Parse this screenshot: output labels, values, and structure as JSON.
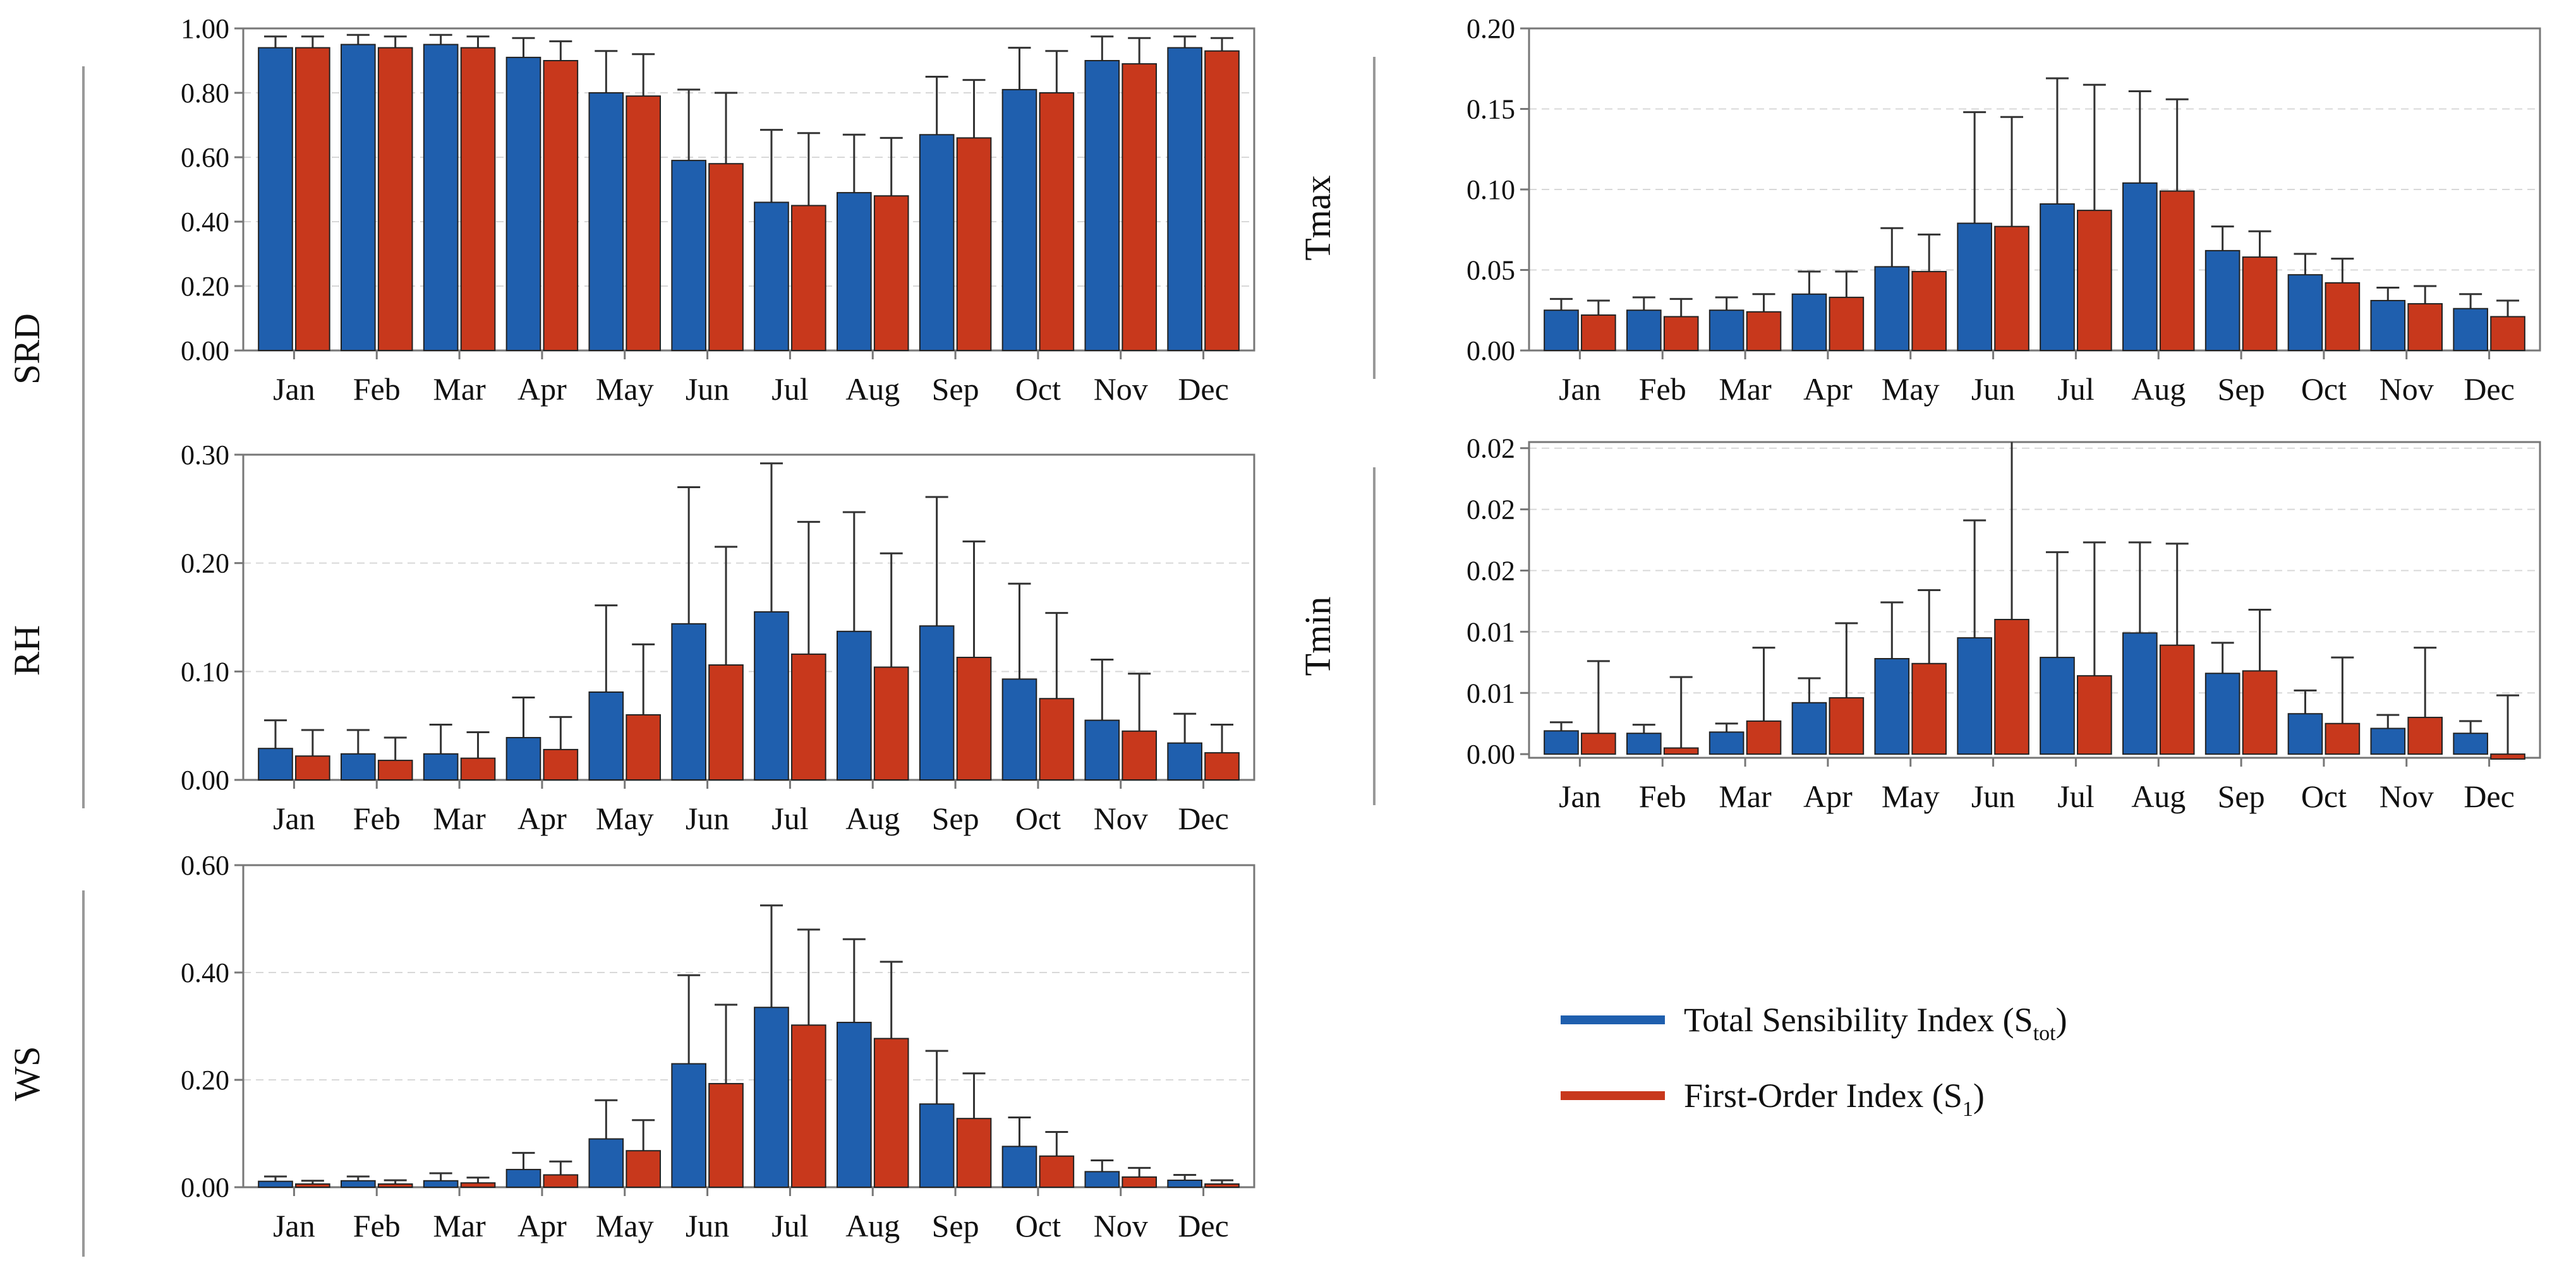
{
  "chart_data": [
    {
      "type": "bar",
      "id": "srd",
      "ylabel": "SRD",
      "categories": [
        "Jan",
        "Feb",
        "Mar",
        "Apr",
        "May",
        "Jun",
        "Jul",
        "Aug",
        "Sep",
        "Oct",
        "Nov",
        "Dec"
      ],
      "ylim": [
        0,
        1.0
      ],
      "yticks": [
        0.0,
        0.2,
        0.4,
        0.6,
        0.8,
        1.0
      ],
      "ytick_labels": [
        "0.00",
        "0.20",
        "0.40",
        "0.60",
        "0.80",
        "1.00"
      ],
      "series": [
        {
          "name": "Total Sensibility Index (Stot)",
          "values": [
            0.94,
            0.95,
            0.95,
            0.91,
            0.8,
            0.59,
            0.46,
            0.49,
            0.67,
            0.81,
            0.9,
            0.94
          ],
          "err": [
            0.975,
            0.98,
            0.98,
            0.97,
            0.93,
            0.81,
            0.685,
            0.67,
            0.85,
            0.94,
            0.975,
            0.975
          ]
        },
        {
          "name": "First-Order Index (S1)",
          "values": [
            0.94,
            0.94,
            0.94,
            0.9,
            0.79,
            0.58,
            0.45,
            0.48,
            0.66,
            0.8,
            0.89,
            0.93
          ],
          "err": [
            0.975,
            0.975,
            0.975,
            0.96,
            0.92,
            0.8,
            0.675,
            0.66,
            0.84,
            0.93,
            0.97,
            0.97
          ]
        }
      ]
    },
    {
      "type": "bar",
      "id": "tmax",
      "ylabel": "Tmax",
      "categories": [
        "Jan",
        "Feb",
        "Mar",
        "Apr",
        "May",
        "Jun",
        "Jul",
        "Aug",
        "Sep",
        "Oct",
        "Nov",
        "Dec"
      ],
      "ylim": [
        0,
        0.2
      ],
      "yticks": [
        0.0,
        0.05,
        0.1,
        0.15,
        0.2
      ],
      "ytick_labels": [
        "0.00",
        "0.05",
        "0.10",
        "0.15",
        "0.20"
      ],
      "series": [
        {
          "name": "Total Sensibility Index (Stot)",
          "values": [
            0.025,
            0.025,
            0.025,
            0.035,
            0.052,
            0.079,
            0.091,
            0.104,
            0.062,
            0.047,
            0.031,
            0.026
          ],
          "err": [
            0.032,
            0.033,
            0.033,
            0.049,
            0.076,
            0.148,
            0.169,
            0.161,
            0.077,
            0.06,
            0.039,
            0.035
          ]
        },
        {
          "name": "First-Order Index (S1)",
          "values": [
            0.022,
            0.021,
            0.024,
            0.033,
            0.049,
            0.077,
            0.087,
            0.099,
            0.058,
            0.042,
            0.029,
            0.021
          ],
          "err": [
            0.031,
            0.032,
            0.035,
            0.049,
            0.072,
            0.145,
            0.165,
            0.156,
            0.074,
            0.057,
            0.04,
            0.031
          ]
        }
      ]
    },
    {
      "type": "bar",
      "id": "rh",
      "ylabel": "RH",
      "categories": [
        "Jan",
        "Feb",
        "Mar",
        "Apr",
        "May",
        "Jun",
        "Jul",
        "Aug",
        "Sep",
        "Oct",
        "Nov",
        "Dec"
      ],
      "ylim": [
        0,
        0.3
      ],
      "yticks": [
        0.0,
        0.1,
        0.2,
        0.3
      ],
      "ytick_labels": [
        "0.00",
        "0.10",
        "0.20",
        "0.30"
      ],
      "series": [
        {
          "name": "Total Sensibility Index (Stot)",
          "values": [
            0.029,
            0.024,
            0.024,
            0.039,
            0.081,
            0.144,
            0.155,
            0.137,
            0.142,
            0.093,
            0.055,
            0.034
          ],
          "err": [
            0.055,
            0.046,
            0.051,
            0.076,
            0.161,
            0.27,
            0.292,
            0.247,
            0.261,
            0.181,
            0.111,
            0.061
          ]
        },
        {
          "name": "First-Order Index (S1)",
          "values": [
            0.022,
            0.018,
            0.02,
            0.028,
            0.06,
            0.106,
            0.116,
            0.104,
            0.113,
            0.075,
            0.045,
            0.025
          ],
          "err": [
            0.046,
            0.039,
            0.044,
            0.058,
            0.125,
            0.215,
            0.238,
            0.209,
            0.22,
            0.154,
            0.098,
            0.051
          ]
        }
      ]
    },
    {
      "type": "bar",
      "id": "tmin",
      "ylabel": "Tmin",
      "categories": [
        "Jan",
        "Feb",
        "Mar",
        "Apr",
        "May",
        "Jun",
        "Jul",
        "Aug",
        "Sep",
        "Oct",
        "Nov",
        "Dec"
      ],
      "ylim": [
        -0.0003,
        0.0255
      ],
      "yticks": [
        0.0,
        0.005,
        0.01,
        0.015,
        0.02,
        0.025
      ],
      "ytick_labels": [
        "0.00",
        "0.01",
        "0.01",
        "0.02",
        "0.02",
        "0.02"
      ],
      "series": [
        {
          "name": "Total Sensibility Index (Stot)",
          "values": [
            0.0019,
            0.0017,
            0.0018,
            0.0042,
            0.0078,
            0.0095,
            0.0079,
            0.0099,
            0.0066,
            0.0033,
            0.0021,
            0.0017
          ],
          "err": [
            0.0026,
            0.0024,
            0.0025,
            0.0062,
            0.0124,
            0.0191,
            0.0165,
            0.0173,
            0.0091,
            0.0052,
            0.0032,
            0.0027
          ]
        },
        {
          "name": "First-Order Index (S1)",
          "values": [
            0.0017,
            0.0005,
            0.0027,
            0.0046,
            0.0074,
            0.011,
            0.0064,
            0.0089,
            0.0068,
            0.0025,
            0.003,
            -0.0004
          ],
          "err": [
            0.0076,
            0.0063,
            0.0087,
            0.0107,
            0.0134,
            0.0265,
            0.0173,
            0.0172,
            0.0118,
            0.0079,
            0.0087,
            0.0048
          ]
        }
      ]
    },
    {
      "type": "bar",
      "id": "ws",
      "ylabel": "WS",
      "categories": [
        "Jan",
        "Feb",
        "Mar",
        "Apr",
        "May",
        "Jun",
        "Jul",
        "Aug",
        "Sep",
        "Oct",
        "Nov",
        "Dec"
      ],
      "ylim": [
        0,
        0.6
      ],
      "yticks": [
        0.0,
        0.2,
        0.4,
        0.6
      ],
      "ytick_labels": [
        "0.00",
        "0.20",
        "0.40",
        "0.60"
      ],
      "series": [
        {
          "name": "Total Sensibility Index (Stot)",
          "values": [
            0.011,
            0.012,
            0.012,
            0.033,
            0.09,
            0.23,
            0.335,
            0.307,
            0.155,
            0.076,
            0.029,
            0.013
          ],
          "err": [
            0.02,
            0.02,
            0.026,
            0.064,
            0.162,
            0.395,
            0.525,
            0.462,
            0.254,
            0.13,
            0.05,
            0.023
          ]
        },
        {
          "name": "First-Order Index (S1)",
          "values": [
            0.006,
            0.006,
            0.008,
            0.023,
            0.068,
            0.193,
            0.302,
            0.277,
            0.128,
            0.058,
            0.019,
            0.006
          ],
          "err": [
            0.012,
            0.013,
            0.018,
            0.048,
            0.125,
            0.34,
            0.48,
            0.42,
            0.212,
            0.103,
            0.036,
            0.013
          ]
        }
      ]
    }
  ],
  "legend": {
    "items": [
      {
        "main": "Total Sensibility Index (S",
        "sub": "tot",
        "close": ")",
        "color": "#1f5fae"
      },
      {
        "main": "First-Order Index (S",
        "sub": "1",
        "close": ")",
        "color": "#c8381c"
      }
    ]
  },
  "colors": {
    "stot": "#1f5fae",
    "s1": "#c8381c",
    "axis": "#777777",
    "grid": "#d8d8d8"
  }
}
